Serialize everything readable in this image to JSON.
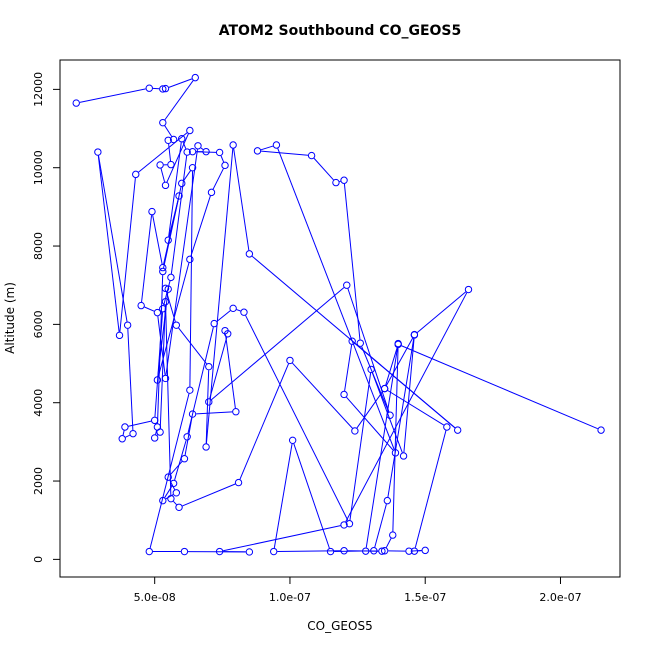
{
  "chart_data": {
    "type": "line",
    "title": "ATOM2 Southbound CO_GEOS5",
    "xlabel": "CO_GEOS5",
    "ylabel": "Altitude (m)",
    "xlim": [
      1.5e-08,
      2.22e-07
    ],
    "ylim": [
      -450,
      12750
    ],
    "x_ticks": [
      5e-08,
      1e-07,
      1.5e-07,
      2e-07
    ],
    "x_tick_labels": [
      "5.0e-08",
      "1.0e-07",
      "1.5e-07",
      "2.0e-07"
    ],
    "y_ticks": [
      0,
      2000,
      4000,
      6000,
      8000,
      10000,
      12000
    ],
    "y_tick_labels": [
      "0",
      "2000",
      "4000",
      "6000",
      "8000",
      "10000",
      "12000"
    ],
    "marker": "open-circle",
    "line_color": "#0000ff",
    "series": [
      {
        "x": [
          2.1e-08,
          4.8e-08,
          5.3e-08,
          5.4e-08,
          6.5e-08,
          5.3e-08,
          5.7e-08,
          5.5e-08,
          5.6e-08,
          5.2e-08,
          5.4e-08,
          6.3e-08,
          4.3e-08,
          3.7e-08,
          2.9e-08,
          4e-08,
          4.2e-08,
          3.8e-08,
          3.9e-08,
          5e-08,
          5.3e-08,
          5.6e-08,
          6.2e-08,
          6e-08,
          5.5e-08,
          5.9e-08,
          5.3e-08,
          4.9e-08,
          4.5e-08,
          5.1e-08,
          5.4e-08,
          6.6e-08,
          6.9e-08,
          6.4e-08,
          7.4e-08,
          7.6e-08,
          7.1e-08,
          6.3e-08,
          5.1e-08,
          5.5e-08,
          5.4e-08,
          5.8e-08,
          7e-08,
          6.9e-08,
          7.9e-08,
          8.5e-08,
          1.62e-07,
          1.23e-07,
          1.2e-07,
          1.39e-07,
          9.5e-08,
          8.8e-08,
          1.08e-07,
          1.17e-07,
          1.2e-07,
          1.26e-07,
          1.37e-07,
          1.21e-07,
          7e-08,
          7.7e-08,
          7.6e-08,
          8e-08,
          6.4e-08,
          6.1e-08,
          5.5e-08,
          5.8e-08,
          5.3e-08,
          5.7e-08,
          6.2e-08,
          7.2e-08,
          7.9e-08,
          8.3e-08,
          1.22e-07,
          1.3e-07,
          1.42e-07,
          1.46e-07,
          1.36e-07,
          1.31e-07,
          1.15e-07,
          1.01e-07,
          9.4e-08,
          1.2e-07,
          1.34e-07,
          1.28e-07,
          1.4e-07,
          1.38e-07,
          1.35e-07,
          1.44e-07,
          1.5e-07,
          1.46e-07,
          1.58e-07,
          1.35e-07,
          1.24e-07,
          1e-07,
          8.1e-08,
          5.9e-08,
          5.6e-08,
          5.4e-08,
          5.2e-08,
          5e-08,
          5.1e-08,
          5.3e-08,
          6e-08,
          6.4e-08,
          6.3e-08,
          4.8e-08,
          6.1e-08,
          8.5e-08,
          7.4e-08,
          1.2e-07,
          1.66e-07,
          1.46e-07,
          1.35e-07,
          1.4e-07,
          2.15e-07
        ],
        "y": [
          11650,
          12030,
          12010,
          12020,
          12300,
          11150,
          10720,
          10700,
          10080,
          10070,
          9550,
          10950,
          9830,
          5720,
          10400,
          5980,
          3210,
          3080,
          3380,
          3550,
          6400,
          7200,
          10400,
          10740,
          8150,
          9280,
          7450,
          8880,
          6480,
          6300,
          4620,
          10560,
          10410,
          10410,
          10390,
          10060,
          9370,
          7660,
          4580,
          6900,
          6920,
          5980,
          4920,
          2870,
          10580,
          7800,
          3300,
          5570,
          4210,
          2720,
          10580,
          10430,
          10310,
          9620,
          9680,
          5520,
          3680,
          7000,
          4020,
          5760,
          5840,
          3770,
          3710,
          2570,
          2100,
          1700,
          1500,
          1940,
          3130,
          6020,
          6410,
          6310,
          910,
          4850,
          2640,
          5740,
          1500,
          220,
          200,
          3040,
          200,
          220,
          210,
          210,
          5510,
          620,
          220,
          210,
          230,
          210,
          3380,
          4360,
          3280,
          5080,
          1960,
          1330,
          1550,
          6580,
          3250,
          3100,
          3380,
          7350,
          9600,
          10000,
          4320,
          200,
          200,
          190,
          200,
          880,
          6890,
          5730,
          4360,
          5490,
          3300
        ]
      }
    ]
  }
}
